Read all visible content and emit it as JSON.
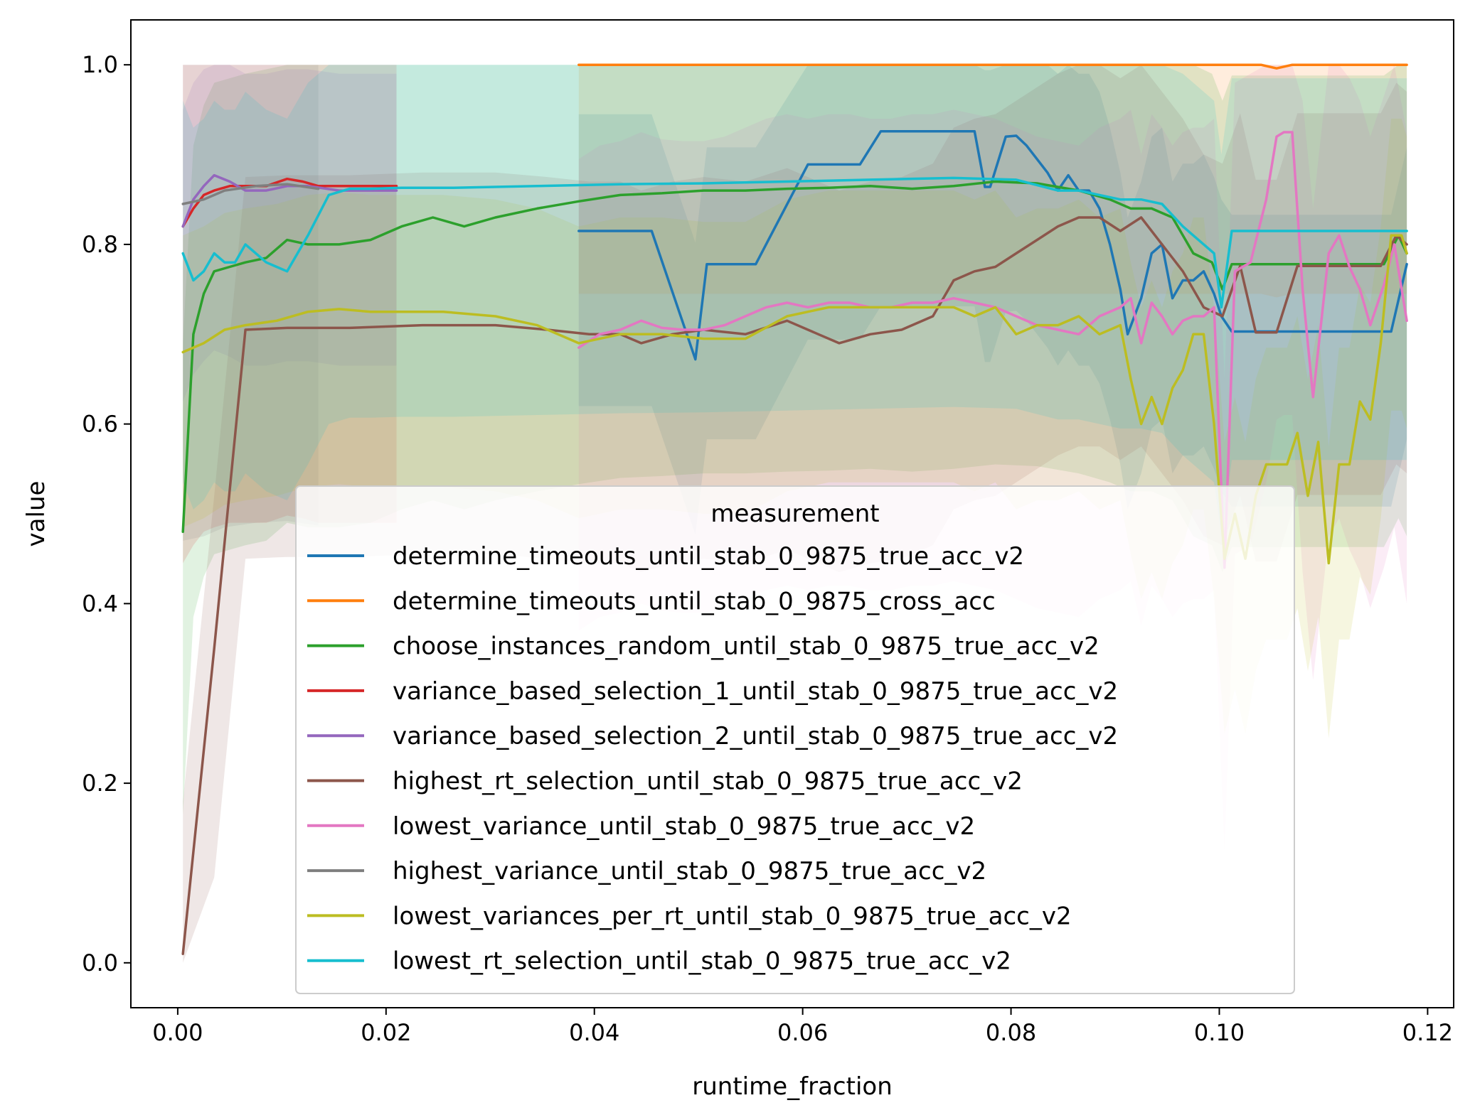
{
  "chart_data": {
    "type": "line",
    "xlabel": "runtime_fraction",
    "ylabel": "value",
    "xlim": [
      -0.0045,
      0.1225
    ],
    "ylim": [
      -0.05,
      1.05
    ],
    "xticks": [
      "0.00",
      "0.02",
      "0.04",
      "0.06",
      "0.08",
      "0.10",
      "0.12"
    ],
    "yticks": [
      "0.0",
      "0.2",
      "0.4",
      "0.6",
      "0.8",
      "1.0"
    ],
    "grid": false,
    "legend": {
      "title": "measurement",
      "placement": "lower center"
    },
    "band_note": "semi-transparent confidence bands per series",
    "series": [
      {
        "name": "determine_timeouts_until_stab_0_9875_true_acc_v2",
        "color": "#1f77b4",
        "x": [
          0.0385,
          0.0455,
          0.0497,
          0.0508,
          0.0555,
          0.0605,
          0.062,
          0.0655,
          0.0675,
          0.0705,
          0.0745,
          0.0765,
          0.0775,
          0.078,
          0.0795,
          0.0805,
          0.0815,
          0.0835,
          0.0845,
          0.0855,
          0.0865,
          0.0875,
          0.0885,
          0.0895,
          0.0905,
          0.0912,
          0.0925,
          0.0935,
          0.0945,
          0.0955,
          0.0965,
          0.0975,
          0.0985,
          0.0995,
          0.1002,
          0.1012,
          0.104,
          0.107,
          0.11,
          0.1132,
          0.1165,
          0.118
        ],
        "y": [
          0.815,
          0.815,
          0.672,
          0.778,
          0.778,
          0.889,
          0.889,
          0.889,
          0.926,
          0.926,
          0.926,
          0.926,
          0.864,
          0.864,
          0.92,
          0.921,
          0.91,
          0.88,
          0.86,
          0.877,
          0.86,
          0.86,
          0.84,
          0.8,
          0.75,
          0.7,
          0.74,
          0.79,
          0.8,
          0.74,
          0.76,
          0.76,
          0.77,
          0.745,
          0.72,
          0.703,
          0.703,
          0.703,
          0.703,
          0.703,
          0.703,
          0.778
        ]
      },
      {
        "name": "determine_timeouts_until_stab_0_9875_cross_acc",
        "color": "#ff7f0e",
        "x": [
          0.0385,
          0.06,
          0.08,
          0.1,
          0.104,
          0.1055,
          0.107,
          0.11,
          0.118
        ],
        "y": [
          1.0,
          1.0,
          1.0,
          1.0,
          1.0,
          0.996,
          1.0,
          1.0,
          1.0
        ]
      },
      {
        "name": "choose_instances_random_until_stab_0_9875_true_acc_v2",
        "color": "#2ca02c",
        "x": [
          0.0005,
          0.0015,
          0.0025,
          0.0035,
          0.005,
          0.0065,
          0.0085,
          0.0105,
          0.0125,
          0.0155,
          0.0185,
          0.0215,
          0.0245,
          0.0275,
          0.0305,
          0.0345,
          0.0385,
          0.0425,
          0.0465,
          0.0505,
          0.0545,
          0.0585,
          0.0625,
          0.0665,
          0.0705,
          0.0745,
          0.0785,
          0.0825,
          0.0865,
          0.0895,
          0.0915,
          0.0935,
          0.0955,
          0.0975,
          0.0993,
          0.1003,
          0.1012,
          0.104,
          0.107,
          0.11,
          0.113,
          0.1158,
          0.1172,
          0.118
        ],
        "y": [
          0.48,
          0.7,
          0.745,
          0.77,
          0.775,
          0.78,
          0.785,
          0.805,
          0.8,
          0.8,
          0.805,
          0.82,
          0.83,
          0.82,
          0.83,
          0.84,
          0.848,
          0.855,
          0.857,
          0.86,
          0.86,
          0.862,
          0.863,
          0.865,
          0.862,
          0.865,
          0.87,
          0.868,
          0.86,
          0.85,
          0.84,
          0.84,
          0.83,
          0.79,
          0.78,
          0.75,
          0.778,
          0.778,
          0.778,
          0.778,
          0.778,
          0.778,
          0.81,
          0.79
        ]
      },
      {
        "name": "variance_based_selection_1_until_stab_0_9875_true_acc_v2",
        "color": "#d62728",
        "x": [
          0.0005,
          0.0015,
          0.0025,
          0.0035,
          0.005,
          0.0065,
          0.0085,
          0.0105,
          0.012,
          0.0135,
          0.0155,
          0.018,
          0.021
        ],
        "y": [
          0.82,
          0.84,
          0.855,
          0.86,
          0.865,
          0.865,
          0.865,
          0.873,
          0.87,
          0.865,
          0.865,
          0.865,
          0.865
        ]
      },
      {
        "name": "variance_based_selection_2_until_stab_0_9875_true_acc_v2",
        "color": "#9467bd",
        "x": [
          0.0005,
          0.0015,
          0.0025,
          0.0035,
          0.005,
          0.0065,
          0.0085,
          0.0105,
          0.0125,
          0.0155,
          0.0185,
          0.021
        ],
        "y": [
          0.82,
          0.85,
          0.865,
          0.877,
          0.87,
          0.86,
          0.86,
          0.865,
          0.865,
          0.86,
          0.86,
          0.86
        ]
      },
      {
        "name": "highest_rt_selection_until_stab_0_9875_true_acc_v2",
        "color": "#8c564b",
        "x": [
          0.0005,
          0.0035,
          0.0065,
          0.0105,
          0.0165,
          0.0235,
          0.0305,
          0.0355,
          0.0395,
          0.0425,
          0.0445,
          0.0475,
          0.0505,
          0.0545,
          0.0585,
          0.0615,
          0.0635,
          0.0665,
          0.0695,
          0.0725,
          0.0745,
          0.0765,
          0.0785,
          0.0805,
          0.0825,
          0.0845,
          0.0865,
          0.0885,
          0.0905,
          0.0925,
          0.0945,
          0.0965,
          0.0985,
          0.1003,
          0.102,
          0.1035,
          0.1055,
          0.1075,
          0.1095,
          0.1115,
          0.1135,
          0.1155,
          0.117,
          0.118
        ],
        "y": [
          0.01,
          0.35,
          0.705,
          0.707,
          0.707,
          0.71,
          0.71,
          0.705,
          0.7,
          0.7,
          0.69,
          0.7,
          0.705,
          0.7,
          0.715,
          0.7,
          0.69,
          0.7,
          0.705,
          0.72,
          0.76,
          0.77,
          0.775,
          0.79,
          0.805,
          0.82,
          0.83,
          0.83,
          0.815,
          0.83,
          0.8,
          0.77,
          0.73,
          0.72,
          0.776,
          0.702,
          0.702,
          0.776,
          0.776,
          0.776,
          0.776,
          0.776,
          0.81,
          0.8
        ]
      },
      {
        "name": "lowest_variance_until_stab_0_9875_true_acc_v2",
        "color": "#e377c2",
        "x": [
          0.0385,
          0.0405,
          0.0425,
          0.0445,
          0.0465,
          0.0485,
          0.0505,
          0.0525,
          0.0545,
          0.0565,
          0.0585,
          0.0605,
          0.0625,
          0.0645,
          0.0665,
          0.0685,
          0.0705,
          0.0725,
          0.0745,
          0.0765,
          0.0785,
          0.0805,
          0.0825,
          0.0845,
          0.0865,
          0.0885,
          0.0905,
          0.0915,
          0.0925,
          0.0935,
          0.0945,
          0.0955,
          0.0965,
          0.0975,
          0.0985,
          0.0995,
          0.1005,
          0.1015,
          0.103,
          0.1045,
          0.1055,
          0.1062,
          0.107,
          0.108,
          0.109,
          0.1105,
          0.1115,
          0.1125,
          0.1135,
          0.1145,
          0.1158,
          0.1168,
          0.118
        ],
        "y": [
          0.685,
          0.7,
          0.705,
          0.715,
          0.707,
          0.705,
          0.705,
          0.71,
          0.72,
          0.73,
          0.735,
          0.73,
          0.735,
          0.735,
          0.73,
          0.73,
          0.735,
          0.735,
          0.74,
          0.735,
          0.73,
          0.72,
          0.71,
          0.705,
          0.7,
          0.72,
          0.73,
          0.74,
          0.69,
          0.735,
          0.72,
          0.7,
          0.715,
          0.72,
          0.72,
          0.73,
          0.44,
          0.77,
          0.78,
          0.85,
          0.92,
          0.925,
          0.925,
          0.75,
          0.63,
          0.79,
          0.81,
          0.775,
          0.75,
          0.71,
          0.755,
          0.8,
          0.715
        ]
      },
      {
        "name": "highest_variance_until_stab_0_9875_true_acc_v2",
        "color": "#7f7f7f",
        "x": [
          0.0005,
          0.0025,
          0.0045,
          0.0075,
          0.0105,
          0.0135
        ],
        "y": [
          0.845,
          0.85,
          0.86,
          0.865,
          0.867,
          0.862
        ]
      },
      {
        "name": "lowest_variances_per_rt_until_stab_0_9875_true_acc_v2",
        "color": "#bcbd22",
        "x": [
          0.0005,
          0.0025,
          0.0045,
          0.0065,
          0.0095,
          0.0125,
          0.0155,
          0.0185,
          0.0215,
          0.0255,
          0.0305,
          0.0345,
          0.0385,
          0.0425,
          0.0465,
          0.0505,
          0.0545,
          0.0585,
          0.0625,
          0.0665,
          0.0705,
          0.0745,
          0.0765,
          0.0785,
          0.0805,
          0.0825,
          0.0845,
          0.0865,
          0.0885,
          0.0905,
          0.0915,
          0.0925,
          0.0935,
          0.0945,
          0.0955,
          0.0965,
          0.0975,
          0.0985,
          0.0995,
          0.1005,
          0.1015,
          0.1025,
          0.1035,
          0.1045,
          0.1055,
          0.1065,
          0.1075,
          0.1085,
          0.1095,
          0.1105,
          0.1115,
          0.1125,
          0.1135,
          0.1145,
          0.1155,
          0.1165,
          0.1175,
          0.118
        ],
        "y": [
          0.68,
          0.69,
          0.705,
          0.71,
          0.715,
          0.725,
          0.728,
          0.725,
          0.725,
          0.725,
          0.72,
          0.71,
          0.69,
          0.7,
          0.7,
          0.695,
          0.695,
          0.72,
          0.73,
          0.73,
          0.73,
          0.73,
          0.72,
          0.73,
          0.7,
          0.71,
          0.71,
          0.72,
          0.7,
          0.71,
          0.65,
          0.6,
          0.63,
          0.6,
          0.64,
          0.66,
          0.7,
          0.7,
          0.6,
          0.45,
          0.5,
          0.45,
          0.52,
          0.555,
          0.555,
          0.555,
          0.59,
          0.52,
          0.58,
          0.445,
          0.555,
          0.555,
          0.625,
          0.605,
          0.69,
          0.81,
          0.81,
          0.79
        ]
      },
      {
        "name": "lowest_rt_selection_until_stab_0_9875_true_acc_v2",
        "color": "#17becf",
        "x": [
          0.0005,
          0.0015,
          0.0025,
          0.0035,
          0.0045,
          0.0055,
          0.0065,
          0.0075,
          0.0085,
          0.0095,
          0.0105,
          0.0125,
          0.0145,
          0.0165,
          0.0185,
          0.0215,
          0.0265,
          0.0345,
          0.0425,
          0.0505,
          0.0585,
          0.0665,
          0.0745,
          0.0805,
          0.0845,
          0.0865,
          0.0885,
          0.0905,
          0.0925,
          0.0945,
          0.0965,
          0.0985,
          0.0995,
          0.1002,
          0.1012,
          0.104,
          0.107,
          0.11,
          0.113,
          0.1165,
          0.118
        ],
        "y": [
          0.79,
          0.76,
          0.77,
          0.79,
          0.78,
          0.78,
          0.8,
          0.79,
          0.78,
          0.775,
          0.77,
          0.81,
          0.855,
          0.862,
          0.862,
          0.863,
          0.863,
          0.865,
          0.867,
          0.868,
          0.87,
          0.872,
          0.874,
          0.872,
          0.86,
          0.86,
          0.855,
          0.85,
          0.85,
          0.845,
          0.82,
          0.8,
          0.79,
          0.73,
          0.815,
          0.815,
          0.815,
          0.815,
          0.815,
          0.815,
          0.815
        ]
      }
    ]
  }
}
